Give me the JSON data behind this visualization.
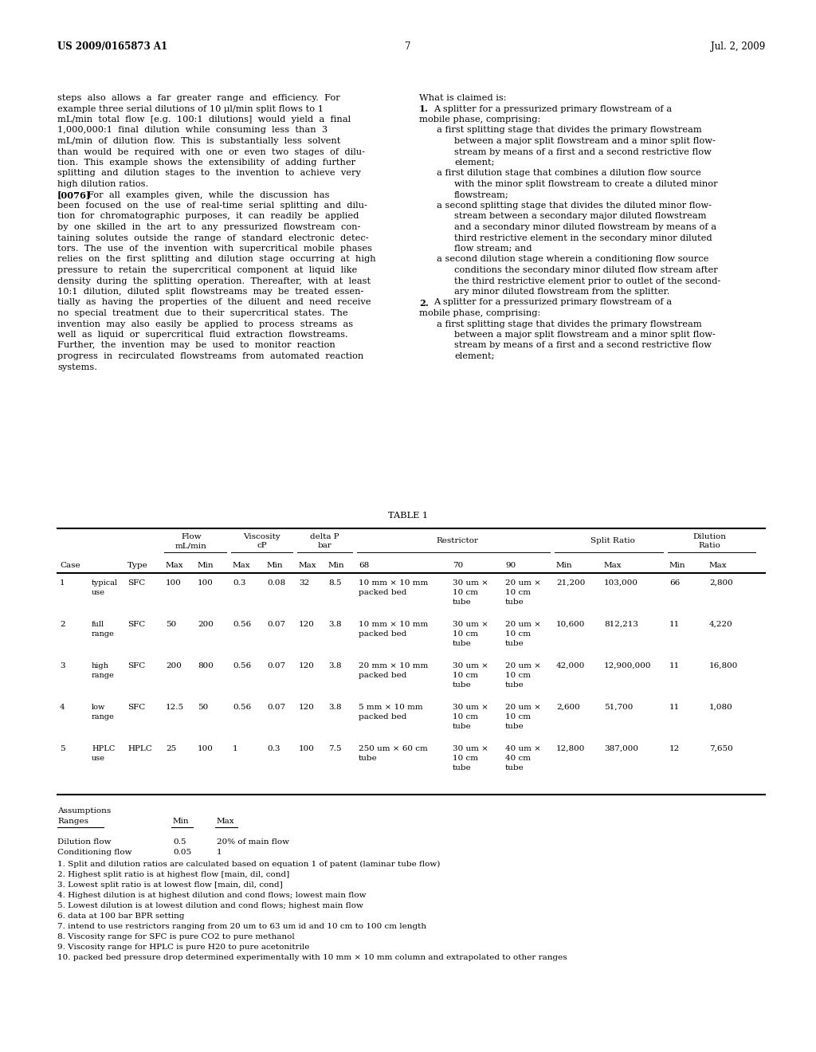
{
  "header_left": "US 2009/0165873 A1",
  "header_right": "Jul. 2, 2009",
  "page_number": "7",
  "left_col_lines": [
    "steps  also  allows  a  far  greater  range  and  efficiency.  For",
    "example three serial dilutions of 10 μl/min split flows to 1",
    "mL/min  total  flow  [e.g.  100:1  dilutions]  would  yield  a  final",
    "1,000,000:1  final  dilution  while  consuming  less  than  3",
    "mL/min  of  dilution  flow.  This  is  substantially  less  solvent",
    "than  would  be  required  with  one  or  even  two  stages  of  dilu-",
    "tion.  This  example  shows  the  extensibility  of  adding  further",
    "splitting  and  dilution  stages  to  the  invention  to  achieve  very",
    "high dilution ratios.",
    "[0076]    For  all  examples  given,  while  the  discussion  has",
    "been  focused  on  the  use  of  real-time  serial  splitting  and  dilu-",
    "tion  for  chromatographic  purposes,  it  can  readily  be  applied",
    "by  one  skilled  in  the  art  to  any  pressurized  flowstream  con-",
    "taining  solutes  outside  the  range  of  standard  electronic  detec-",
    "tors.  The  use  of  the  invention  with  supercritical  mobile  phases",
    "relies  on  the  first  splitting  and  dilution  stage  occurring  at  high",
    "pressure  to  retain  the  supercritical  component  at  liquid  like",
    "density  during  the  splitting  operation.  Thereafter,  with  at  least",
    "10:1  dilution,  diluted  split  flowstreams  may  be  treated  essen-",
    "tially  as  having  the  properties  of  the  diluent  and  need  receive",
    "no  special  treatment  due  to  their  supercritical  states.  The",
    "invention  may  also  easily  be  applied  to  process  streams  as",
    "well  as  liquid  or  supercritical  fluid  extraction  flowstreams.",
    "Further,  the  invention  may  be  used  to  monitor  reaction",
    "progress  in  recirculated  flowstreams  from  automated  reaction",
    "systems."
  ],
  "right_col_lines": [
    {
      "text": "What is claimed is:",
      "indent": 0,
      "bold_prefix": ""
    },
    {
      "text": "1.  A splitter for a pressurized primary flowstream of a",
      "indent": 0,
      "bold_prefix": "1."
    },
    {
      "text": "mobile phase, comprising:",
      "indent": 0,
      "bold_prefix": ""
    },
    {
      "text": "a first splitting stage that divides the primary flowstream",
      "indent": 1,
      "bold_prefix": ""
    },
    {
      "text": "between a major split flowstream and a minor split flow-",
      "indent": 2,
      "bold_prefix": ""
    },
    {
      "text": "stream by means of a first and a second restrictive flow",
      "indent": 2,
      "bold_prefix": ""
    },
    {
      "text": "element;",
      "indent": 2,
      "bold_prefix": ""
    },
    {
      "text": "a first dilution stage that combines a dilution flow source",
      "indent": 1,
      "bold_prefix": ""
    },
    {
      "text": "with the minor split flowstream to create a diluted minor",
      "indent": 2,
      "bold_prefix": ""
    },
    {
      "text": "flowstream;",
      "indent": 2,
      "bold_prefix": ""
    },
    {
      "text": "a second splitting stage that divides the diluted minor flow-",
      "indent": 1,
      "bold_prefix": ""
    },
    {
      "text": "stream between a secondary major diluted flowstream",
      "indent": 2,
      "bold_prefix": ""
    },
    {
      "text": "and a secondary minor diluted flowstream by means of a",
      "indent": 2,
      "bold_prefix": ""
    },
    {
      "text": "third restrictive element in the secondary minor diluted",
      "indent": 2,
      "bold_prefix": ""
    },
    {
      "text": "flow stream; and",
      "indent": 2,
      "bold_prefix": ""
    },
    {
      "text": "a second dilution stage wherein a conditioning flow source",
      "indent": 1,
      "bold_prefix": ""
    },
    {
      "text": "conditions the secondary minor diluted flow stream after",
      "indent": 2,
      "bold_prefix": ""
    },
    {
      "text": "the third restrictive element prior to outlet of the second-",
      "indent": 2,
      "bold_prefix": ""
    },
    {
      "text": "ary minor diluted flowstream from the splitter.",
      "indent": 2,
      "bold_prefix": ""
    },
    {
      "text": "2.  A splitter for a pressurized primary flowstream of a",
      "indent": 0,
      "bold_prefix": "2."
    },
    {
      "text": "mobile phase, comprising:",
      "indent": 0,
      "bold_prefix": ""
    },
    {
      "text": "a first splitting stage that divides the primary flowstream",
      "indent": 1,
      "bold_prefix": ""
    },
    {
      "text": "between a major split flowstream and a minor split flow-",
      "indent": 2,
      "bold_prefix": ""
    },
    {
      "text": "stream by means of a first and a second restrictive flow",
      "indent": 2,
      "bold_prefix": ""
    },
    {
      "text": "element;",
      "indent": 2,
      "bold_prefix": ""
    }
  ],
  "table_data": [
    {
      "case": "1",
      "label": "typical\nuse",
      "type": "SFC",
      "flow_max": "100",
      "flow_min": "100",
      "visc_max": "0.3",
      "visc_min": "0.08",
      "dp_max": "32",
      "dp_min": "8.5",
      "rest68": "10 mm × 10 mm\npacked bed",
      "rest70": "30 um ×\n10 cm\ntube",
      "rest90": "20 um ×\n10 cm\ntube",
      "split_min": "21,200",
      "split_max": "103,000",
      "dil_min": "66",
      "dil_max": "2,800"
    },
    {
      "case": "2",
      "label": "full\nrange",
      "type": "SFC",
      "flow_max": "50",
      "flow_min": "200",
      "visc_max": "0.56",
      "visc_min": "0.07",
      "dp_max": "120",
      "dp_min": "3.8",
      "rest68": "10 mm × 10 mm\npacked bed",
      "rest70": "30 um ×\n10 cm\ntube",
      "rest90": "20 um ×\n10 cm\ntube",
      "split_min": "10,600",
      "split_max": "812,213",
      "dil_min": "11",
      "dil_max": "4,220"
    },
    {
      "case": "3",
      "label": "high\nrange",
      "type": "SFC",
      "flow_max": "200",
      "flow_min": "800",
      "visc_max": "0.56",
      "visc_min": "0.07",
      "dp_max": "120",
      "dp_min": "3.8",
      "rest68": "20 mm × 10 mm\npacked bed",
      "rest70": "30 um ×\n10 cm\ntube",
      "rest90": "20 um ×\n10 cm\ntube",
      "split_min": "42,000",
      "split_max": "12,900,000",
      "dil_min": "11",
      "dil_max": "16,800"
    },
    {
      "case": "4",
      "label": "low\nrange",
      "type": "SFC",
      "flow_max": "12.5",
      "flow_min": "50",
      "visc_max": "0.56",
      "visc_min": "0.07",
      "dp_max": "120",
      "dp_min": "3.8",
      "rest68": "5 mm × 10 mm\npacked bed",
      "rest70": "30 um ×\n10 cm\ntube",
      "rest90": "20 um ×\n10 cm\ntube",
      "split_min": "2,600",
      "split_max": "51,700",
      "dil_min": "11",
      "dil_max": "1,080"
    },
    {
      "case": "5",
      "label": "HPLC\nuse",
      "type": "HPLC",
      "flow_max": "25",
      "flow_min": "100",
      "visc_max": "1",
      "visc_min": "0.3",
      "dp_max": "100",
      "dp_min": "7.5",
      "rest68": "250 um × 60 cm\ntube",
      "rest70": "30 um ×\n10 cm\ntube",
      "rest90": "40 um ×\n40 cm\ntube",
      "split_min": "12,800",
      "split_max": "387,000",
      "dil_min": "12",
      "dil_max": "7,650"
    }
  ],
  "footnotes": [
    "1. Split and dilution ratios are calculated based on equation 1 of patent (laminar tube flow)",
    "2. Highest split ratio is at highest flow [main, dil, cond]",
    "3. Lowest split ratio is at lowest flow [main, dil, cond]",
    "4. Highest dilution is at highest dilution and cond flows; lowest main flow",
    "5. Lowest dilution is at lowest dilution and cond flows; highest main flow",
    "6. data at 100 bar BPR setting",
    "7. intend to use restrictors ranging from 20 um to 63 um id and 10 cm to 100 cm length",
    "8. Viscosity range for SFC is pure CO2 to pure methanol",
    "9. Viscosity range for HPLC is pure H20 to pure acetonitrile",
    "10. packed bed pressure drop determined experimentally with 10 mm × 10 mm column and extrapolated to other ranges"
  ],
  "bg_color": "#ffffff",
  "text_color": "#000000"
}
